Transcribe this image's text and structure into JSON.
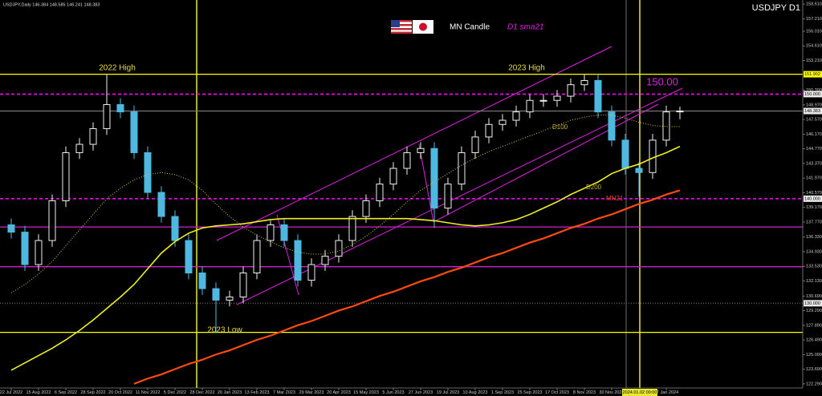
{
  "chart_data": {
    "type": "candlestick",
    "header": "USDJPY,Daily  146.384 148.585 146.241 148.383",
    "title": "USDJPY D1",
    "legend": [
      "MN Candle",
      "D1 sma21"
    ],
    "annotations": {
      "high_2022": "2022 High",
      "high_2023": "2023 High",
      "level_150": "150.00",
      "low_2023": "2023 Low",
      "d100": "D100",
      "d200": "D200",
      "mn21": "MN21"
    },
    "crosshair": "2024.01.02 00:00",
    "categories": [
      "22 Jul 2022",
      null,
      "15 Aug 2022",
      null,
      "6 Sep 2022",
      null,
      "28 Sep 2022",
      null,
      "20 Oct 2022",
      null,
      "11 Nov 2022",
      null,
      "5 Dec 2022",
      null,
      "28 Dec 2022",
      null,
      "20 Jan 2023",
      null,
      "13 Feb 2023",
      null,
      "7 Mar 2023",
      null,
      "29 Mar 2023",
      null,
      "20 Apr 2023",
      null,
      "15 May 2023",
      null,
      "5 Jun 2023",
      null,
      "27 Jun 2023",
      null,
      "19 Jul 2023",
      null,
      "10 Aug 2023",
      null,
      "1 Sep 2023",
      null,
      "25 Sep 2023",
      null,
      "17 Oct 2023",
      null,
      "8 Nov 2023",
      null,
      "30 Nov 2023",
      null,
      null,
      null,
      "17 Jan 2024",
      null
    ],
    "candles": {
      "up_color": "#f0f0f0",
      "down_color": "#4fb8e0",
      "open": [
        137.5,
        136.8,
        133.7,
        136.0,
        139.8,
        144.4,
        145.2,
        146.7,
        149.0,
        148.3,
        144.4,
        140.6,
        138.3,
        136.0,
        132.9,
        131.4,
        130.3,
        130.6,
        132.9,
        136.0,
        137.5,
        136.0,
        132.2,
        133.7,
        134.5,
        136.0,
        138.3,
        139.8,
        141.4,
        142.9,
        144.4,
        144.8,
        139.1,
        141.4,
        144.4,
        145.9,
        147.1,
        147.5,
        148.3,
        149.4,
        149.4,
        149.8,
        150.9,
        151.3,
        148.3,
        145.6,
        142.9,
        142.5,
        145.6,
        148.3
      ],
      "high": [
        138.1,
        137.4,
        136.6,
        140.4,
        145.0,
        145.8,
        147.3,
        151.9,
        149.6,
        148.9,
        145.0,
        141.2,
        138.9,
        136.6,
        133.5,
        132.0,
        131.2,
        133.5,
        136.6,
        137.9,
        138.1,
        136.6,
        134.3,
        135.1,
        136.6,
        138.9,
        140.4,
        142.0,
        143.5,
        145.0,
        145.4,
        145.4,
        142.0,
        145.0,
        146.5,
        147.7,
        148.1,
        148.9,
        150.0,
        150.0,
        150.4,
        151.5,
        151.9,
        151.9,
        148.9,
        146.2,
        143.5,
        146.2,
        148.9,
        148.8
      ],
      "low": [
        136.2,
        133.1,
        133.1,
        135.4,
        139.2,
        143.8,
        144.6,
        146.1,
        147.7,
        143.8,
        140.0,
        137.7,
        135.4,
        132.3,
        130.8,
        127.2,
        129.7,
        130.0,
        132.3,
        135.4,
        135.4,
        131.6,
        131.6,
        133.1,
        133.9,
        135.4,
        137.7,
        139.2,
        140.8,
        142.3,
        143.8,
        137.2,
        138.5,
        140.8,
        143.8,
        145.3,
        146.5,
        146.9,
        147.7,
        148.8,
        148.8,
        149.2,
        150.3,
        147.7,
        145.0,
        142.3,
        140.2,
        141.9,
        145.0,
        147.6
      ],
      "close": [
        136.8,
        133.7,
        136.0,
        139.8,
        144.4,
        145.2,
        146.7,
        149.0,
        148.3,
        144.4,
        140.6,
        138.3,
        136.0,
        132.9,
        131.4,
        130.3,
        130.6,
        132.9,
        136.0,
        137.5,
        136.0,
        132.2,
        133.7,
        134.5,
        136.0,
        138.3,
        139.8,
        141.4,
        142.9,
        144.4,
        144.8,
        139.1,
        141.4,
        144.4,
        145.9,
        147.1,
        147.5,
        148.3,
        149.4,
        149.4,
        149.8,
        150.9,
        151.3,
        148.3,
        145.6,
        142.9,
        142.5,
        145.6,
        148.3,
        148.383
      ]
    },
    "series": [
      {
        "name": "D100",
        "color": "#d8c840",
        "style": "dotted",
        "width": 1,
        "values": [
          131.0,
          131.8,
          132.8,
          134.0,
          135.5,
          137.0,
          138.5,
          140.0,
          141.0,
          141.8,
          142.3,
          142.5,
          142.3,
          141.8,
          140.8,
          139.5,
          138.3,
          137.3,
          136.5,
          135.9,
          135.3,
          134.9,
          134.7,
          134.7,
          135.0,
          135.6,
          136.4,
          137.4,
          138.5,
          139.7,
          140.8,
          141.6,
          142.4,
          143.2,
          143.9,
          144.5,
          145.0,
          145.5,
          146.0,
          146.5,
          147.0,
          147.5,
          147.8,
          148.0,
          148.0,
          147.7,
          147.3,
          147.0,
          146.9,
          146.9
        ]
      },
      {
        "name": "D200",
        "color": "#f0f020",
        "style": "solid",
        "width": 1.6,
        "values": [
          123.6,
          124.3,
          125.0,
          125.7,
          126.5,
          127.4,
          128.4,
          129.5,
          130.6,
          131.8,
          133.3,
          134.8,
          135.9,
          136.7,
          137.2,
          137.4,
          137.5,
          137.6,
          137.8,
          138.0,
          138.1,
          138.1,
          138.1,
          138.1,
          138.1,
          138.1,
          138.1,
          138.1,
          138.1,
          138.1,
          138.0,
          137.9,
          137.7,
          137.5,
          137.4,
          137.5,
          137.7,
          138.0,
          138.5,
          139.1,
          139.7,
          140.4,
          141.0,
          141.6,
          142.4,
          142.9,
          143.3,
          143.9,
          144.4,
          145.0
        ]
      },
      {
        "name": "MN21",
        "color": "#ff4a10",
        "style": "solid",
        "width": 2.2,
        "values": [
          null,
          null,
          null,
          null,
          null,
          null,
          null,
          null,
          null,
          122.3,
          122.8,
          123.2,
          123.7,
          124.2,
          124.6,
          125.1,
          125.5,
          126.0,
          126.5,
          126.9,
          127.4,
          127.9,
          128.3,
          128.8,
          129.3,
          129.7,
          130.2,
          130.7,
          131.1,
          131.6,
          132.1,
          132.5,
          133.0,
          133.4,
          133.9,
          134.4,
          134.8,
          135.3,
          135.8,
          136.2,
          136.7,
          137.2,
          137.6,
          138.1,
          138.5,
          139.0,
          139.5,
          139.9,
          140.4,
          140.8
        ]
      }
    ],
    "levels": [
      {
        "value": 151.902,
        "label": "151.902",
        "color": "#ffff00",
        "line": "solid"
      },
      {
        "value": 150,
        "label": "150.000",
        "color": "#ff00ff",
        "line": "dashed"
      },
      {
        "value": 148.383,
        "label": "148.383",
        "color": "#777777",
        "line": "solid"
      },
      {
        "value": 140,
        "label": "140.000",
        "color": "#ff00ff",
        "line": "dashed"
      },
      {
        "value": 130,
        "label": "130.000",
        "color": "#555555",
        "line": "dotted"
      },
      {
        "value": 137.3,
        "color": "#d020d0",
        "line": "solid"
      },
      {
        "value": 133.5,
        "color": "#d020d0",
        "line": "solid"
      },
      {
        "value": 127.22,
        "color": "#ffff00",
        "line": "solid"
      }
    ],
    "ylim": [
      121.9,
      159.0
    ],
    "yticks": [
      {
        "value": 158.61,
        "label": "158.610"
      },
      {
        "value": 157.21,
        "label": "157.210"
      },
      {
        "value": 156.01,
        "label": "156.010"
      },
      {
        "value": 154.61,
        "label": "154.610"
      },
      {
        "value": 153.21,
        "label": "153.210"
      },
      {
        "value": 150.39,
        "label": "150.390"
      },
      {
        "value": 148.97,
        "label": "148.970"
      },
      {
        "value": 147.57,
        "label": "147.570"
      },
      {
        "value": 146.17,
        "label": "146.170"
      },
      {
        "value": 144.77,
        "label": "144.770"
      },
      {
        "value": 143.37,
        "label": "143.370"
      },
      {
        "value": 141.97,
        "label": "141.970"
      },
      {
        "value": 140.57,
        "label": "140.570"
      },
      {
        "value": 139.17,
        "label": "139.170"
      },
      {
        "value": 137.77,
        "label": "137.770"
      },
      {
        "value": 136.33,
        "label": "136.330"
      },
      {
        "value": 134.93,
        "label": "134.930"
      },
      {
        "value": 133.53,
        "label": "133.530"
      },
      {
        "value": 132.13,
        "label": "132.130"
      },
      {
        "value": 130.69,
        "label": "130.690"
      },
      {
        "value": 129.29,
        "label": "129.290"
      },
      {
        "value": 127.89,
        "label": "127.890"
      },
      {
        "value": 126.49,
        "label": "126.490"
      },
      {
        "value": 125.09,
        "label": "125.090"
      },
      {
        "value": 123.69,
        "label": "123.690"
      },
      {
        "value": 122.29,
        "label": "122.290"
      }
    ]
  }
}
